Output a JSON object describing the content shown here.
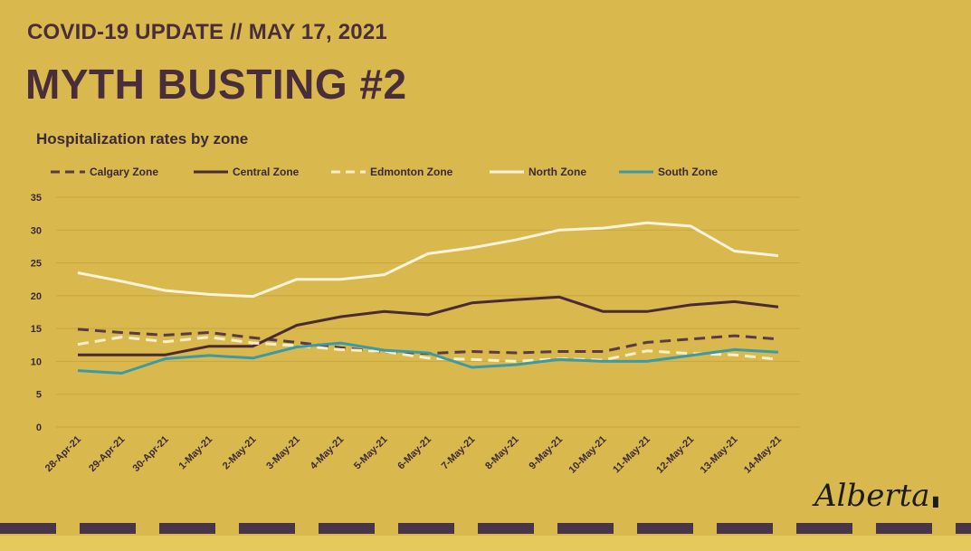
{
  "header": {
    "update_line": "COVID-19 UPDATE // MAY 17, 2021",
    "title": "MYTH BUSTING #2"
  },
  "logo": {
    "text": "Alberta"
  },
  "chart_data": {
    "type": "line",
    "title": "Hospitalization rates by zone",
    "xlabel": "",
    "ylabel": "",
    "ylim": [
      0,
      35
    ],
    "yticks": [
      0,
      5,
      10,
      15,
      20,
      25,
      30,
      35
    ],
    "grid": true,
    "legend": "top",
    "categories": [
      "28-Apr-21",
      "29-Apr-21",
      "30-Apr-21",
      "1-May-21",
      "2-May-21",
      "3-May-21",
      "4-May-21",
      "5-May-21",
      "6-May-21",
      "7-May-21",
      "8-May-21",
      "9-May-21",
      "10-May-21",
      "11-May-21",
      "12-May-21",
      "13-May-21",
      "14-May-21"
    ],
    "series": [
      {
        "name": "Calgary Zone",
        "color": "#5a3a44",
        "dash": "dashed",
        "values": [
          14.9,
          14.4,
          14.0,
          14.4,
          13.6,
          12.9,
          12.1,
          11.4,
          11.2,
          11.5,
          11.3,
          11.5,
          11.5,
          12.9,
          13.4,
          13.9,
          13.4
        ]
      },
      {
        "name": "Central Zone",
        "color": "#4a2a34",
        "dash": "solid",
        "values": [
          11.0,
          11.0,
          11.0,
          12.3,
          12.3,
          15.5,
          16.8,
          17.6,
          17.1,
          18.9,
          19.4,
          19.8,
          17.6,
          17.6,
          18.6,
          19.1,
          18.3
        ]
      },
      {
        "name": "Edmonton Zone",
        "color": "#f7efc8",
        "dash": "dashed",
        "values": [
          12.6,
          13.7,
          13.0,
          13.7,
          12.8,
          12.4,
          11.8,
          11.5,
          10.5,
          10.3,
          10.0,
          10.4,
          10.2,
          11.6,
          11.2,
          11.0,
          10.3
        ]
      },
      {
        "name": "North Zone",
        "color": "#faf3dc",
        "dash": "solid",
        "values": [
          23.5,
          22.2,
          20.8,
          20.2,
          19.9,
          22.5,
          22.5,
          23.2,
          26.4,
          27.3,
          28.5,
          30.0,
          30.3,
          31.1,
          30.6,
          26.8,
          26.1
        ]
      },
      {
        "name": "South Zone",
        "color": "#3b9aa6",
        "dash": "solid",
        "values": [
          8.6,
          8.2,
          10.4,
          10.9,
          10.5,
          12.2,
          12.8,
          11.7,
          11.3,
          9.1,
          9.5,
          10.3,
          10.0,
          10.0,
          10.9,
          11.8,
          11.4
        ]
      }
    ]
  }
}
